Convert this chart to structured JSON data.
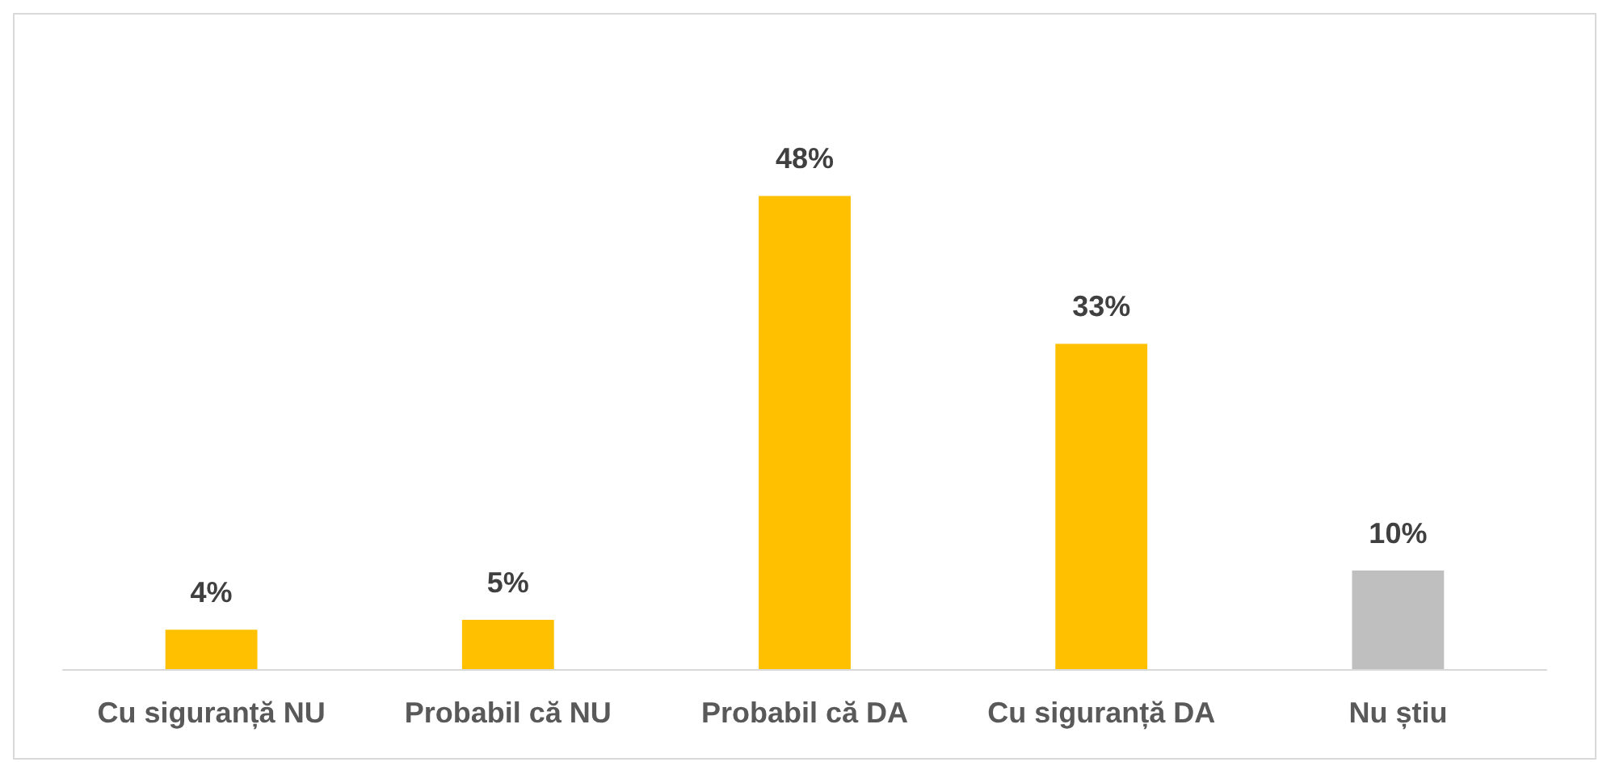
{
  "chart_data": {
    "type": "bar",
    "categories": [
      "Cu siguranță NU",
      "Probabil că NU",
      "Probabil că DA",
      "Cu siguranță DA",
      "Nu știu"
    ],
    "values": [
      4,
      5,
      48,
      33,
      10
    ],
    "colors": [
      "#ffc000",
      "#ffc000",
      "#ffc000",
      "#ffc000",
      "#bfbfbf"
    ],
    "value_labels": [
      "4%",
      "5%",
      "48%",
      "33%",
      "10%"
    ]
  }
}
